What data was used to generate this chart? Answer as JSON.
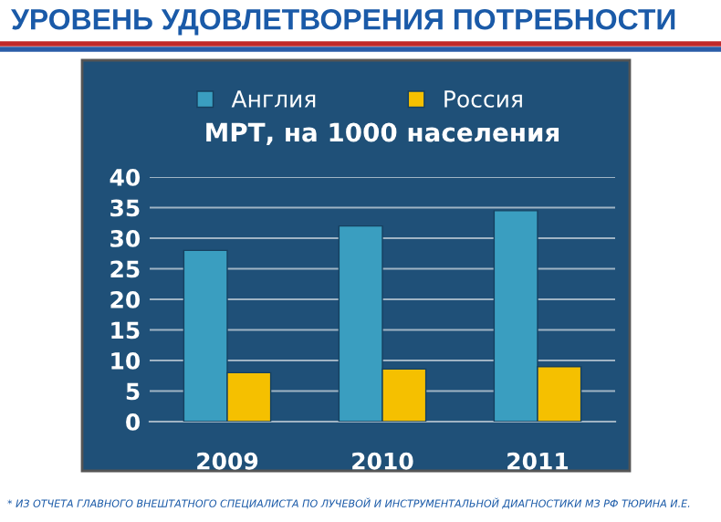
{
  "chart_data": {
    "type": "bar",
    "title": "МРТ, на 1000 населения",
    "subtitle": "УРОВЕНЬ УДОВЛЕТВОРЕНИЯ ПОТРЕБНОСТИ",
    "categories": [
      "2009",
      "2010",
      "2011"
    ],
    "series": [
      {
        "name": "Англия",
        "color": "#3a9ec0",
        "values": [
          28,
          32,
          34.5
        ]
      },
      {
        "name": "Россия",
        "color": "#f5c000",
        "values": [
          8,
          8.6,
          9
        ]
      }
    ],
    "ylim": [
      0,
      40
    ],
    "yticks": [
      0,
      5,
      10,
      15,
      20,
      25,
      30,
      35,
      40
    ],
    "grid": "y",
    "legend": "top",
    "annotations": [
      "* ИЗ ОТЧЕТА ГЛАВНОГО ВНЕШТАТНОГО СПЕЦИАЛИСТА ПО ЛУЧЕВОЙ И ИНСТРУМЕНТАЛЬНОЙ ДИАГНОСТИКИ МЗ РФ ТЮРИНА И.Е."
    ]
  }
}
